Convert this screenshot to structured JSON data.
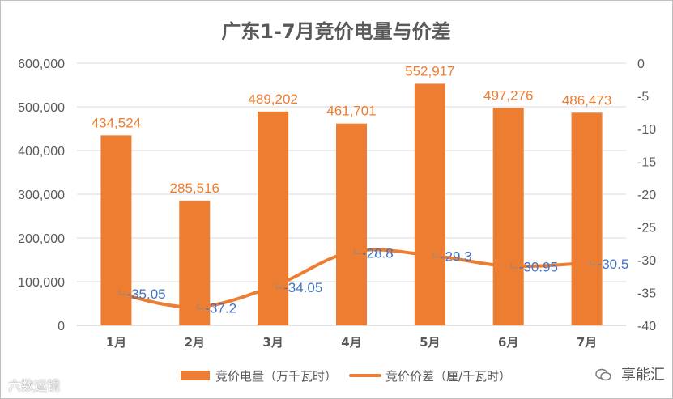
{
  "chart_data": {
    "type": "bar+line",
    "title": "广东1-7月竞价电量与价差",
    "categories": [
      "1月",
      "2月",
      "3月",
      "4月",
      "5月",
      "6月",
      "7月"
    ],
    "series": [
      {
        "name": "竞价电量（万千瓦时）",
        "type": "bar",
        "axis": "left",
        "values": [
          434524,
          285516,
          489202,
          461701,
          552917,
          497276,
          486473
        ],
        "labels": [
          "434,524",
          "285,516",
          "489,202",
          "461,701",
          "552,917",
          "497,276",
          "486,473"
        ]
      },
      {
        "name": "竞价价差（厘/千瓦时）",
        "type": "line",
        "axis": "right",
        "values": [
          -35.05,
          -37.2,
          -34.05,
          -28.8,
          -29.3,
          -30.95,
          -30.5
        ],
        "labels": [
          "-35.05",
          "-37.2",
          "-34.05",
          "-28.8",
          "-29.3",
          "-30.95",
          "-30.5"
        ]
      }
    ],
    "y_left": {
      "range": [
        0,
        600000
      ],
      "ticks": [
        "0",
        "100,000",
        "200,000",
        "300,000",
        "400,000",
        "500,000",
        "600,000"
      ]
    },
    "y_right": {
      "range": [
        -40,
        0
      ],
      "ticks": [
        "0",
        "-5",
        "-10",
        "-15",
        "-20",
        "-25",
        "-30",
        "-35",
        "-40"
      ]
    },
    "grid": true,
    "legend": "bottom"
  },
  "colors": {
    "bar": "#ed7d31",
    "line": "#ed7d31",
    "bar_label": "#ed7d31",
    "line_label": "#4472c4",
    "axis_text": "#595959",
    "title": "#595959",
    "grid": "#d9d9d9"
  },
  "watermarks": {
    "left": "六数运镜",
    "right": "享能汇"
  }
}
